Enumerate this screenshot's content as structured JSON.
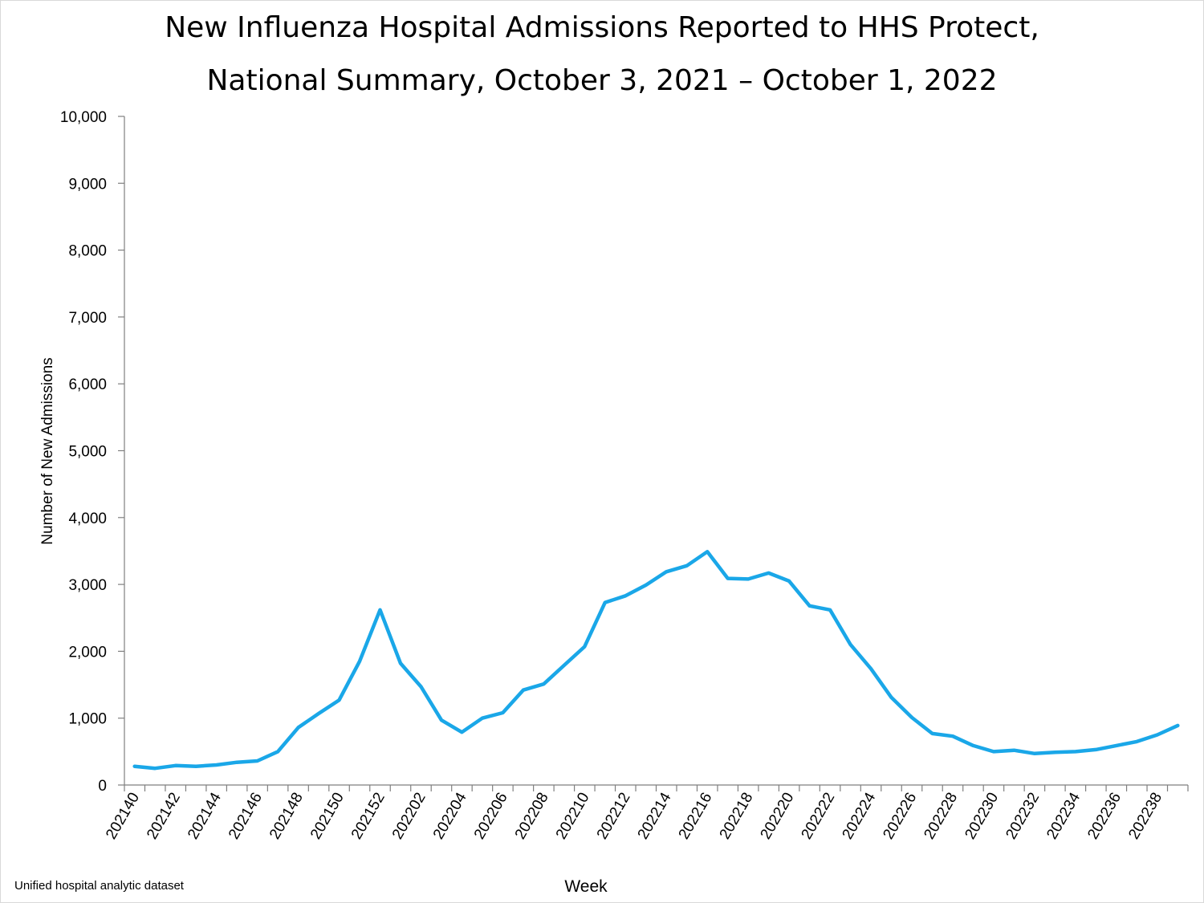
{
  "title_line1": "New Influenza Hospital Admissions Reported to HHS Protect,",
  "title_line2": "National Summary, October 3, 2021 – October 1, 2022",
  "source_note": "Unified hospital analytic dataset",
  "chart_data": {
    "type": "line",
    "title": "New Influenza Hospital Admissions Reported to HHS Protect, National Summary, October 3, 2021 – October 1, 2022",
    "xlabel": "Week",
    "ylabel": "Number of New Admissions",
    "ylim": [
      0,
      10000
    ],
    "yticks": [
      "0",
      "1,000",
      "2,000",
      "3,000",
      "4,000",
      "5,000",
      "6,000",
      "7,000",
      "8,000",
      "9,000",
      "10,000"
    ],
    "xtick_labels": [
      "202140",
      "202142",
      "202144",
      "202146",
      "202148",
      "202150",
      "202152",
      "202202",
      "202204",
      "202206",
      "202208",
      "202210",
      "202212",
      "202214",
      "202216",
      "202218",
      "202220",
      "202222",
      "202224",
      "202226",
      "202228",
      "202230",
      "202232",
      "202234",
      "202236",
      "202238"
    ],
    "grid": false,
    "line_color": "#1aa7e8",
    "x": [
      "202140",
      "202141",
      "202142",
      "202143",
      "202144",
      "202145",
      "202146",
      "202147",
      "202148",
      "202149",
      "202150",
      "202151",
      "202152",
      "202201",
      "202202",
      "202203",
      "202204",
      "202205",
      "202206",
      "202207",
      "202208",
      "202209",
      "202210",
      "202211",
      "202212",
      "202213",
      "202214",
      "202215",
      "202216",
      "202217",
      "202218",
      "202219",
      "202220",
      "202221",
      "202222",
      "202223",
      "202224",
      "202225",
      "202226",
      "202227",
      "202228",
      "202229",
      "202230",
      "202231",
      "202232",
      "202233",
      "202234",
      "202235",
      "202236",
      "202237",
      "202238",
      "202239"
    ],
    "values": [
      280,
      250,
      290,
      280,
      300,
      340,
      360,
      500,
      860,
      1070,
      1270,
      1850,
      2620,
      1820,
      1470,
      970,
      790,
      1000,
      1080,
      1420,
      1510,
      1790,
      2070,
      2730,
      2830,
      2990,
      3190,
      3280,
      3490,
      3090,
      3080,
      3170,
      3050,
      2680,
      2620,
      2100,
      1740,
      1310,
      1010,
      770,
      730,
      590,
      500,
      520,
      470,
      490,
      500,
      530,
      590,
      650,
      750,
      890
    ]
  }
}
